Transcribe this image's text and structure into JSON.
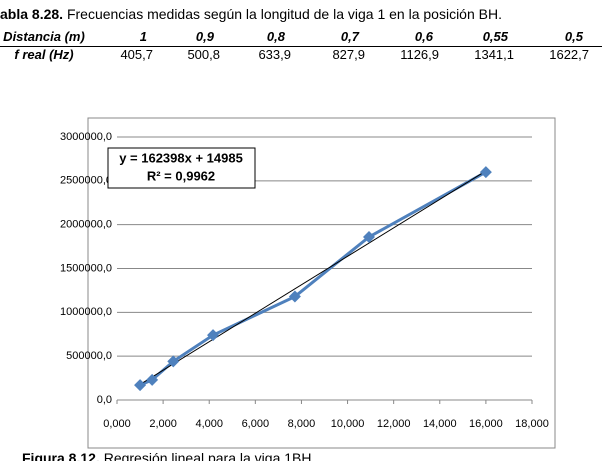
{
  "caption": {
    "label": "abla 8.28.",
    "text": "Frecuencias medidas según la longitud de la viga 1 en la posición BH."
  },
  "table": {
    "header": [
      "Distancia (m)",
      "1",
      "0,9",
      "0,8",
      "0,7",
      "0,6",
      "0,55",
      "0,5"
    ],
    "rows": [
      [
        "f real (Hz)",
        "405,7",
        "500,8",
        "633,9",
        "827,9",
        "1126,9",
        "1341,1",
        "1622,7"
      ]
    ]
  },
  "chart_data": {
    "type": "scatter",
    "x": [
      1.0,
      1.524,
      2.441,
      4.165,
      7.716,
      10.93,
      16.0
    ],
    "series": [
      {
        "color": "#4f81bd",
        "values": [
          170000,
          230000,
          440000,
          740000,
          1180000,
          1860000,
          2600000
        ]
      }
    ],
    "trendline": {
      "slope": 162398,
      "intercept": 14985,
      "color": "#000000",
      "label": "y = 162398x + 14985",
      "r2_label": "R² = 0,9962"
    },
    "xlim": [
      0,
      18
    ],
    "xticks": [
      {
        "value": 0,
        "label": "0,000"
      },
      {
        "value": 2,
        "label": "2,000"
      },
      {
        "value": 4,
        "label": "4,000"
      },
      {
        "value": 6,
        "label": "6,000"
      },
      {
        "value": 8,
        "label": "8,000"
      },
      {
        "value": 10,
        "label": "10,000"
      },
      {
        "value": 12,
        "label": "12,000"
      },
      {
        "value": 14,
        "label": "14,000"
      },
      {
        "value": 16,
        "label": "16,000"
      },
      {
        "value": 18,
        "label": "18,000"
      }
    ],
    "ylim": [
      0,
      3000000
    ],
    "yticks": [
      {
        "value": 0,
        "label": "0,0"
      },
      {
        "value": 500000,
        "label": "500000,0"
      },
      {
        "value": 1000000,
        "label": "1000000,0"
      },
      {
        "value": 1500000,
        "label": "1500000,0"
      },
      {
        "value": 2000000,
        "label": "2000000,0"
      },
      {
        "value": 2500000,
        "label": "2500000,0"
      },
      {
        "value": 3000000,
        "label": "3000000,0"
      }
    ],
    "grid": true
  },
  "figure_caption": {
    "label": "Figura 8.12.",
    "text": "Regresión lineal para la viga 1BH."
  }
}
